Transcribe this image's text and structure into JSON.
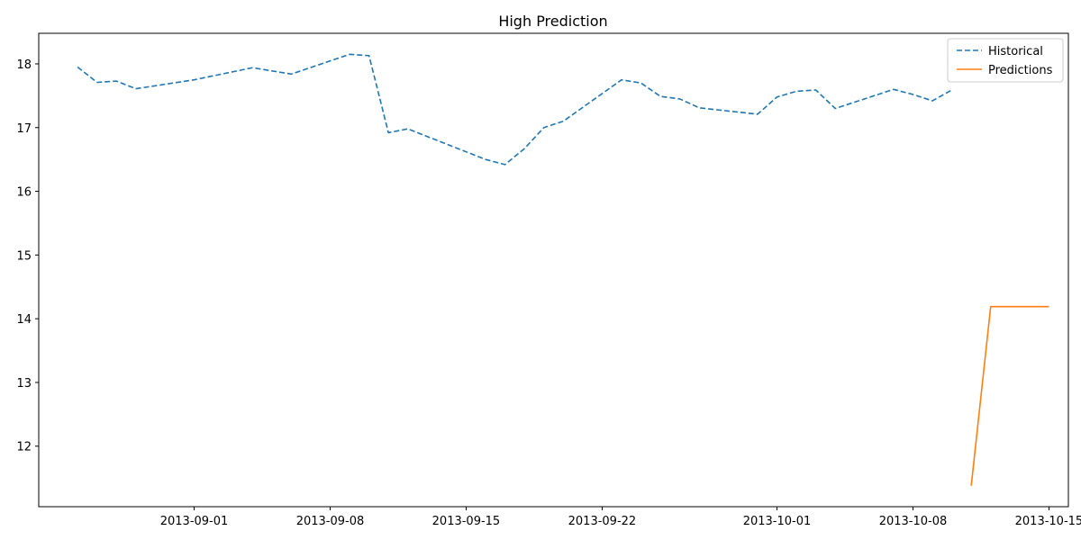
{
  "chart_data": {
    "type": "line",
    "title": "High Prediction",
    "xlabel": "",
    "ylabel": "",
    "x_axis_type": "date",
    "xlim": [
      "2013-08-24",
      "2013-10-16"
    ],
    "ylim": [
      11.05,
      18.48
    ],
    "x_ticks": [
      "2013-09-01",
      "2013-09-08",
      "2013-09-15",
      "2013-09-22",
      "2013-10-01",
      "2013-10-08",
      "2013-10-15"
    ],
    "y_ticks": [
      12,
      13,
      14,
      15,
      16,
      17,
      18
    ],
    "grid": false,
    "legend_position": "top-right",
    "series": [
      {
        "name": "Historical",
        "color": "#1f77b4",
        "style": "dashed",
        "x": [
          "2013-08-26",
          "2013-08-27",
          "2013-08-28",
          "2013-08-29",
          "2013-09-01",
          "2013-09-04",
          "2013-09-06",
          "2013-09-09",
          "2013-09-10",
          "2013-09-11",
          "2013-09-12",
          "2013-09-16",
          "2013-09-17",
          "2013-09-18",
          "2013-09-19",
          "2013-09-20",
          "2013-09-23",
          "2013-09-24",
          "2013-09-25",
          "2013-09-26",
          "2013-09-27",
          "2013-09-30",
          "2013-10-01",
          "2013-10-02",
          "2013-10-03",
          "2013-10-04",
          "2013-10-07",
          "2013-10-08",
          "2013-10-09",
          "2013-10-10"
        ],
        "y": [
          17.95,
          17.71,
          17.73,
          17.61,
          17.75,
          17.94,
          17.84,
          18.15,
          18.13,
          16.92,
          16.98,
          16.5,
          16.42,
          16.67,
          17.0,
          17.1,
          17.75,
          17.7,
          17.49,
          17.45,
          17.31,
          17.21,
          17.48,
          17.57,
          17.59,
          17.3,
          17.6,
          17.52,
          17.42,
          17.59
        ]
      },
      {
        "name": "Predictions",
        "color": "#ff7f0e",
        "style": "solid",
        "x": [
          "2013-10-11",
          "2013-10-12",
          "2013-10-13",
          "2013-10-14",
          "2013-10-15"
        ],
        "y": [
          11.38,
          14.19,
          14.19,
          14.19,
          14.19
        ]
      }
    ]
  }
}
